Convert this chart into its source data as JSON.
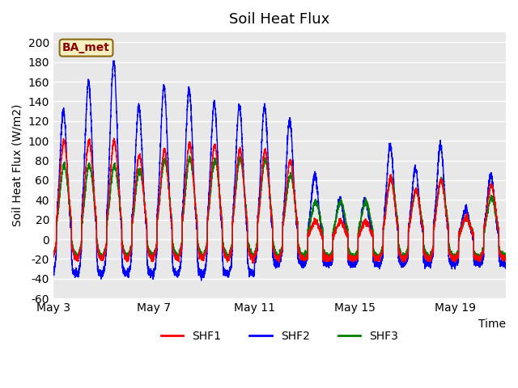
{
  "title": "Soil Heat Flux",
  "ylabel": "Soil Heat Flux (W/m2)",
  "xlabel": "Time",
  "legend_label": "BA_met",
  "series_labels": [
    "SHF1",
    "SHF2",
    "SHF3"
  ],
  "series_colors": [
    "red",
    "blue",
    "green"
  ],
  "ylim": [
    -60,
    210
  ],
  "yticks": [
    -60,
    -40,
    -20,
    0,
    20,
    40,
    60,
    80,
    100,
    120,
    140,
    160,
    180,
    200
  ],
  "xtick_labels": [
    "May 3",
    "May 7",
    "May 11",
    "May 15",
    "May 19"
  ],
  "plot_bg_color": "#e8e8e8",
  "title_fontsize": 13,
  "axis_fontsize": 10,
  "legend_fontsize": 10,
  "linewidth": 1.0,
  "n_days": 18,
  "points_per_day": 288,
  "day_peak_amps_shf2": [
    130,
    160,
    180,
    135,
    155,
    152,
    138,
    135,
    135,
    120,
    65,
    40,
    40,
    95,
    72,
    95,
    30,
    65
  ],
  "day_peak_amps_shf1": [
    100,
    100,
    100,
    85,
    90,
    98,
    95,
    90,
    90,
    80,
    18,
    18,
    18,
    62,
    50,
    60,
    22,
    55
  ],
  "day_peak_amps_shf3": [
    75,
    75,
    75,
    70,
    80,
    82,
    80,
    82,
    80,
    65,
    38,
    38,
    38,
    62,
    50,
    60,
    22,
    42
  ],
  "night_min_shf2": -45,
  "night_min_shf1": -22,
  "night_min_shf3": -20,
  "night_base_shf2": -30,
  "night_base_shf1": -20,
  "night_base_shf3": -18
}
